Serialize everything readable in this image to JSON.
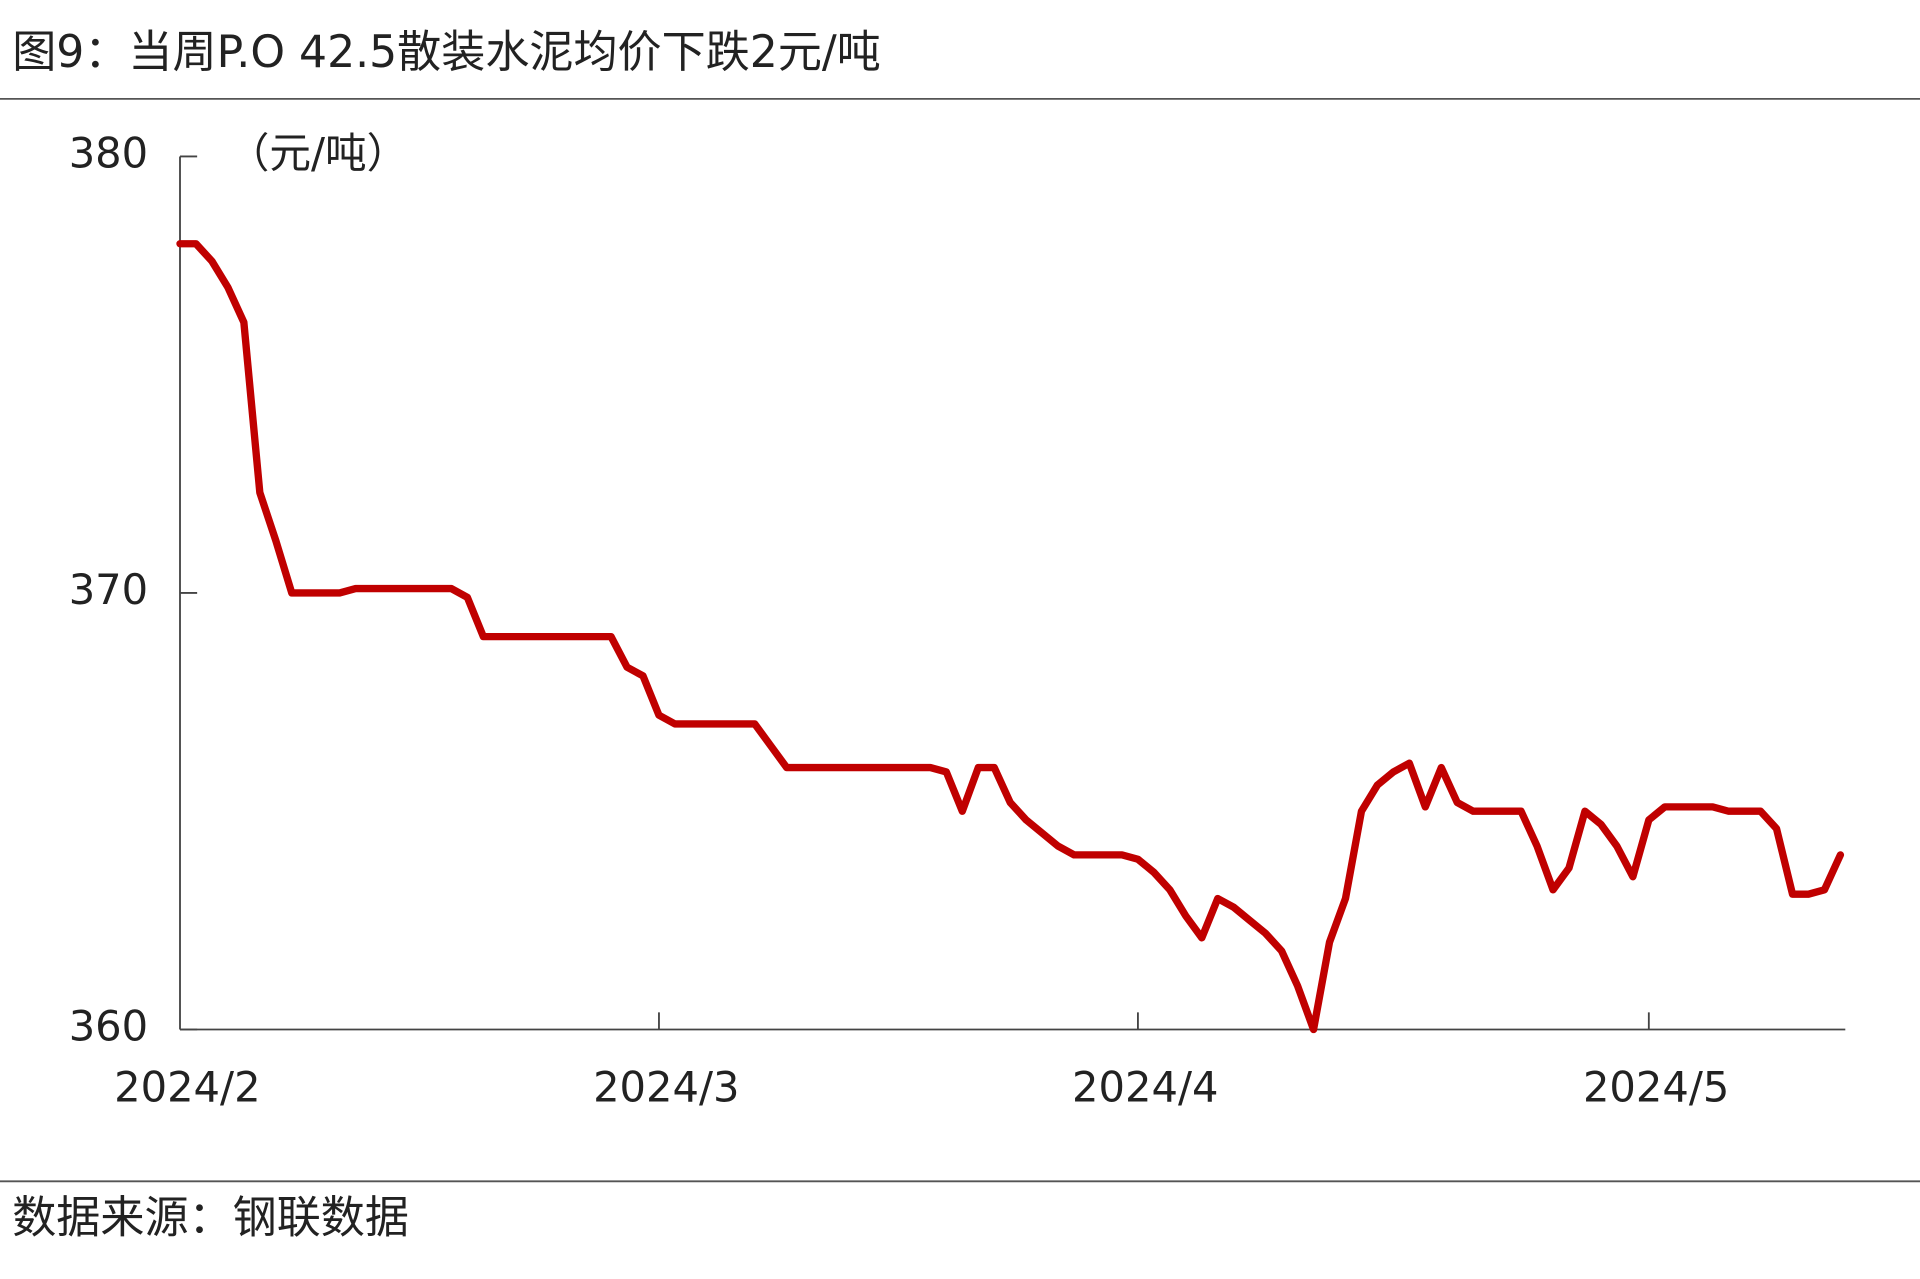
{
  "chart_data": {
    "type": "line",
    "title": "图9：当周P.O 42.5散装水泥均价下跌2元/吨",
    "y_label": "（元/吨）",
    "source": "数据来源：钢联数据",
    "categories": [
      "2024/2",
      null,
      null,
      null,
      null,
      null,
      null,
      null,
      null,
      null,
      null,
      null,
      null,
      null,
      null,
      null,
      null,
      null,
      null,
      null,
      null,
      null,
      null,
      null,
      null,
      null,
      null,
      null,
      null,
      null,
      "2024/3",
      null,
      null,
      null,
      null,
      null,
      null,
      null,
      null,
      null,
      null,
      null,
      null,
      null,
      null,
      null,
      null,
      null,
      null,
      null,
      null,
      null,
      null,
      null,
      null,
      null,
      null,
      null,
      null,
      null,
      "2024/4",
      null,
      null,
      null,
      null,
      null,
      null,
      null,
      null,
      null,
      null,
      null,
      null,
      null,
      null,
      null,
      null,
      null,
      null,
      null,
      null,
      null,
      null,
      null,
      null,
      null,
      null,
      null,
      null,
      null,
      null,
      null,
      "2024/5",
      null,
      null,
      null,
      null,
      null,
      null,
      null,
      null,
      null,
      null,
      null,
      null
    ],
    "series": [
      {
        "name": "P.O 42.5散装水泥均价",
        "color": "#c00000",
        "values": [
          378,
          378,
          377.6,
          377,
          376.2,
          372.3,
          371.2,
          370,
          370,
          370,
          370,
          370.1,
          370.1,
          370.1,
          370.1,
          370.1,
          370.1,
          370.1,
          369.9,
          369,
          369,
          369,
          369,
          369,
          369,
          369,
          369,
          369,
          368.3,
          368.1,
          367.2,
          367,
          367,
          367,
          367,
          367,
          367,
          366.5,
          366,
          366,
          366,
          366,
          366,
          366,
          366,
          366,
          366,
          366,
          365.9,
          365,
          366,
          366,
          365.2,
          364.8,
          364.5,
          364.2,
          364,
          364,
          364,
          364,
          363.9,
          363.6,
          363.2,
          362.6,
          362.1,
          363,
          362.8,
          362.5,
          362.2,
          361.8,
          361,
          360,
          362,
          363,
          365,
          365.6,
          365.9,
          366.1,
          365.1,
          366,
          365.2,
          365,
          365,
          365,
          365,
          364.2,
          363.2,
          363.7,
          365,
          364.7,
          364.2,
          363.5,
          364.8,
          365.1,
          365.1,
          365.1,
          365.1,
          365,
          365,
          365,
          364.6,
          363.1,
          363.1,
          363.2,
          364
        ]
      }
    ],
    "ylim": [
      360,
      380
    ],
    "yticks": [
      360,
      370,
      380
    ],
    "legend": false
  }
}
